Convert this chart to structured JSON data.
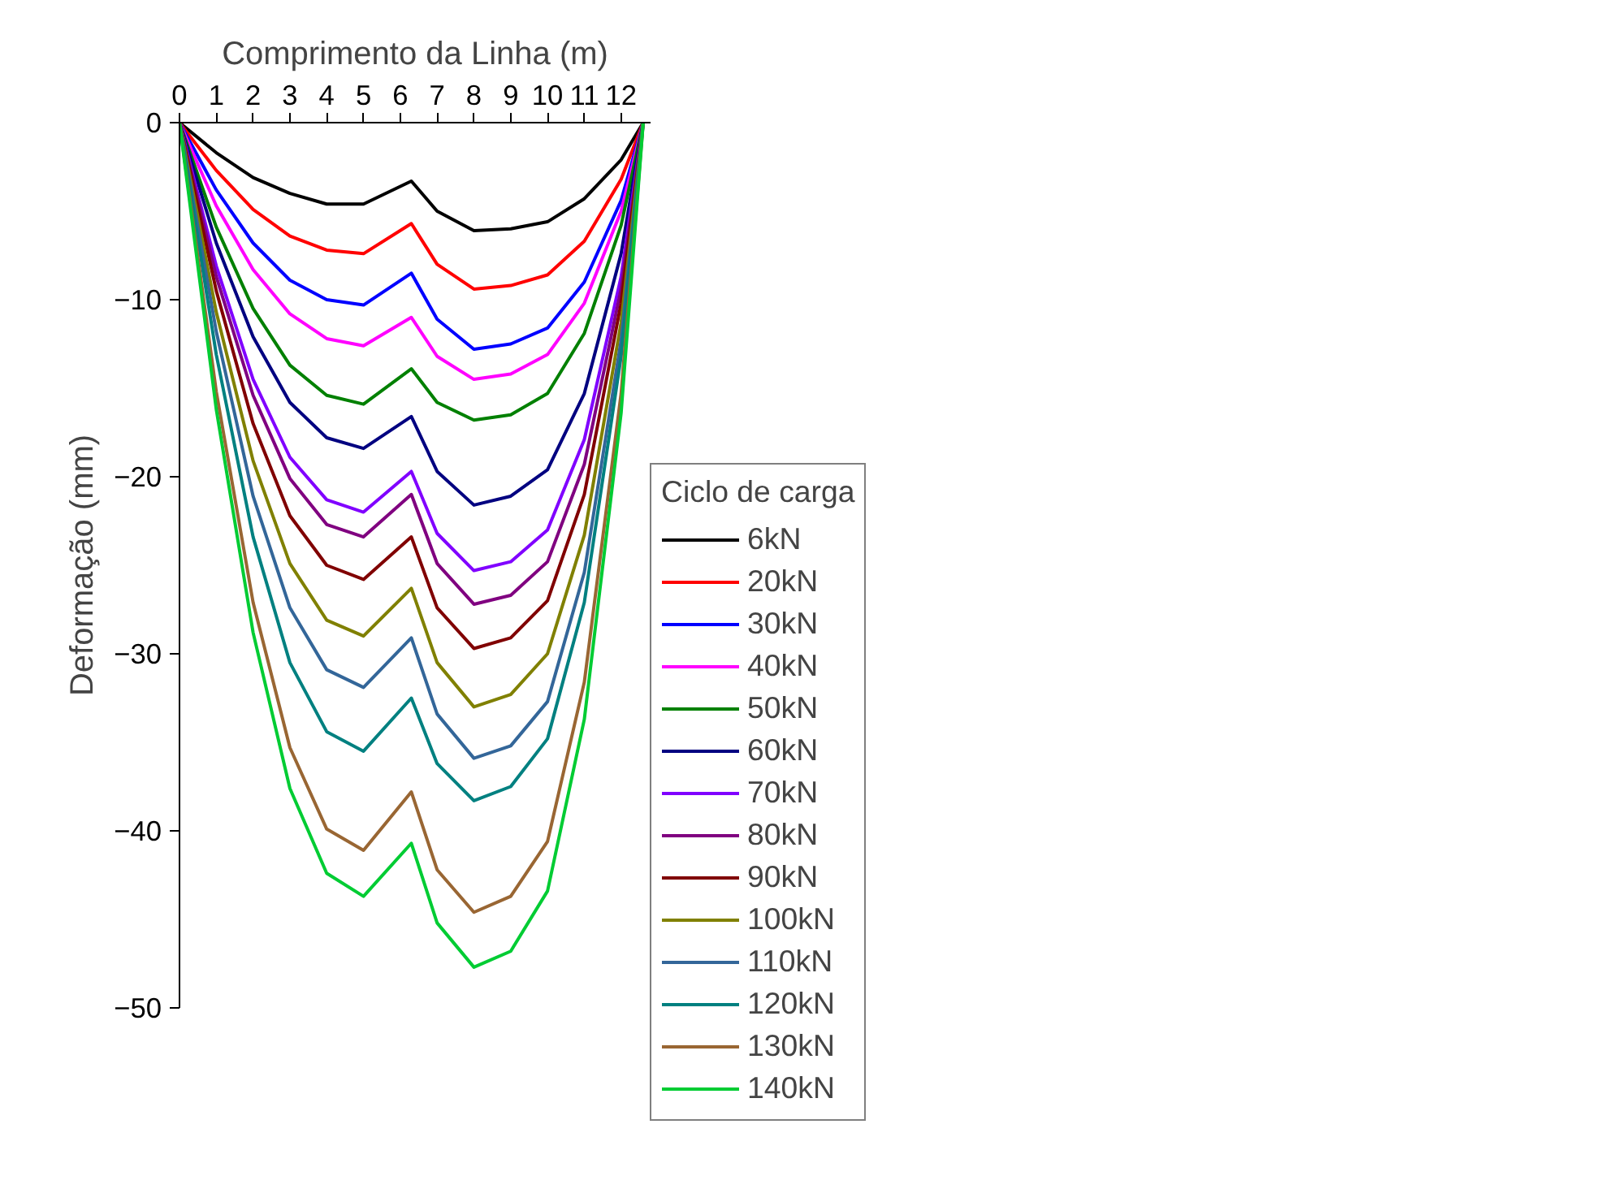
{
  "chart_data": {
    "type": "line",
    "xlabel": "Comprimento da Linha (m)",
    "ylabel": "Deformação (mm)",
    "legend_title": "Ciclo de carga",
    "legend": "right",
    "grid": false,
    "marker": "none",
    "line_style": "solid",
    "x": [
      0,
      1,
      2,
      3,
      4,
      5,
      6.3,
      7,
      8,
      9,
      10,
      11,
      12,
      12.6
    ],
    "xlim": [
      0,
      12.8
    ],
    "xticks": [
      0,
      1,
      2,
      3,
      4,
      5,
      6,
      7,
      8,
      9,
      10,
      11,
      12
    ],
    "ylim": [
      -50,
      0
    ],
    "yticks": [
      0,
      -10,
      -20,
      -30,
      -40,
      -50
    ],
    "series": [
      {
        "name": "6kN",
        "color": "#000000",
        "values": [
          0,
          -1.7,
          -3.1,
          -4.0,
          -4.6,
          -4.6,
          -3.3,
          -5.0,
          -6.1,
          -6.0,
          -5.6,
          -4.3,
          -2.1,
          0
        ]
      },
      {
        "name": "20kN",
        "color": "#ff0000",
        "values": [
          0,
          -2.7,
          -4.9,
          -6.4,
          -7.2,
          -7.4,
          -5.7,
          -8.0,
          -9.4,
          -9.2,
          -8.6,
          -6.7,
          -3.2,
          0
        ]
      },
      {
        "name": "30kN",
        "color": "#0000ff",
        "values": [
          0,
          -3.8,
          -6.8,
          -8.9,
          -10.0,
          -10.3,
          -8.5,
          -11.1,
          -12.8,
          -12.5,
          -11.6,
          -9.0,
          -4.4,
          0
        ]
      },
      {
        "name": "40kN",
        "color": "#ff00ff",
        "values": [
          0,
          -4.7,
          -8.3,
          -10.8,
          -12.2,
          -12.6,
          -11.0,
          -13.2,
          -14.5,
          -14.2,
          -13.1,
          -10.2,
          -5.0,
          0
        ]
      },
      {
        "name": "50kN",
        "color": "#008000",
        "values": [
          0,
          -5.9,
          -10.5,
          -13.7,
          -15.4,
          -15.9,
          -13.9,
          -15.8,
          -16.8,
          -16.5,
          -15.3,
          -11.9,
          -5.8,
          0
        ]
      },
      {
        "name": "60kN",
        "color": "#000080",
        "values": [
          0,
          -6.8,
          -12.1,
          -15.8,
          -17.8,
          -18.4,
          -16.6,
          -19.7,
          -21.6,
          -21.1,
          -19.6,
          -15.3,
          -7.4,
          0
        ]
      },
      {
        "name": "70kN",
        "color": "#8000ff",
        "values": [
          0,
          -8.1,
          -14.5,
          -18.9,
          -21.3,
          -22.0,
          -19.7,
          -23.2,
          -25.3,
          -24.8,
          -23.0,
          -17.9,
          -8.7,
          0
        ]
      },
      {
        "name": "80kN",
        "color": "#800080",
        "values": [
          0,
          -8.7,
          -15.4,
          -20.1,
          -22.7,
          -23.4,
          -21.0,
          -24.9,
          -27.2,
          -26.7,
          -24.8,
          -19.3,
          -9.4,
          0
        ]
      },
      {
        "name": "90kN",
        "color": "#800000",
        "values": [
          0,
          -9.5,
          -17.0,
          -22.2,
          -25.0,
          -25.8,
          -23.4,
          -27.4,
          -29.7,
          -29.1,
          -27.0,
          -21.0,
          -10.2,
          0
        ]
      },
      {
        "name": "100kN",
        "color": "#808000",
        "values": [
          0,
          -10.7,
          -19.1,
          -24.9,
          -28.1,
          -29.0,
          -26.3,
          -30.5,
          -33.0,
          -32.3,
          -30.0,
          -23.3,
          -11.3,
          0
        ]
      },
      {
        "name": "110kN",
        "color": "#336699",
        "values": [
          0,
          -11.8,
          -21.1,
          -27.4,
          -30.9,
          -31.9,
          -29.1,
          -33.4,
          -35.9,
          -35.2,
          -32.7,
          -25.4,
          -12.3,
          0
        ]
      },
      {
        "name": "120kN",
        "color": "#008080",
        "values": [
          0,
          -13.1,
          -23.4,
          -30.5,
          -34.4,
          -35.5,
          -32.5,
          -36.2,
          -38.3,
          -37.5,
          -34.8,
          -27.1,
          -13.2,
          0
        ]
      },
      {
        "name": "130kN",
        "color": "#996633",
        "values": [
          0,
          -15.2,
          -27.1,
          -35.3,
          -39.9,
          -41.1,
          -37.8,
          -42.2,
          -44.6,
          -43.7,
          -40.6,
          -31.6,
          -15.3,
          0
        ]
      },
      {
        "name": "140kN",
        "color": "#00cc33",
        "values": [
          0,
          -16.2,
          -28.8,
          -37.6,
          -42.4,
          -43.7,
          -40.7,
          -45.2,
          -47.7,
          -46.8,
          -43.4,
          -33.7,
          -16.4,
          0
        ]
      }
    ]
  }
}
